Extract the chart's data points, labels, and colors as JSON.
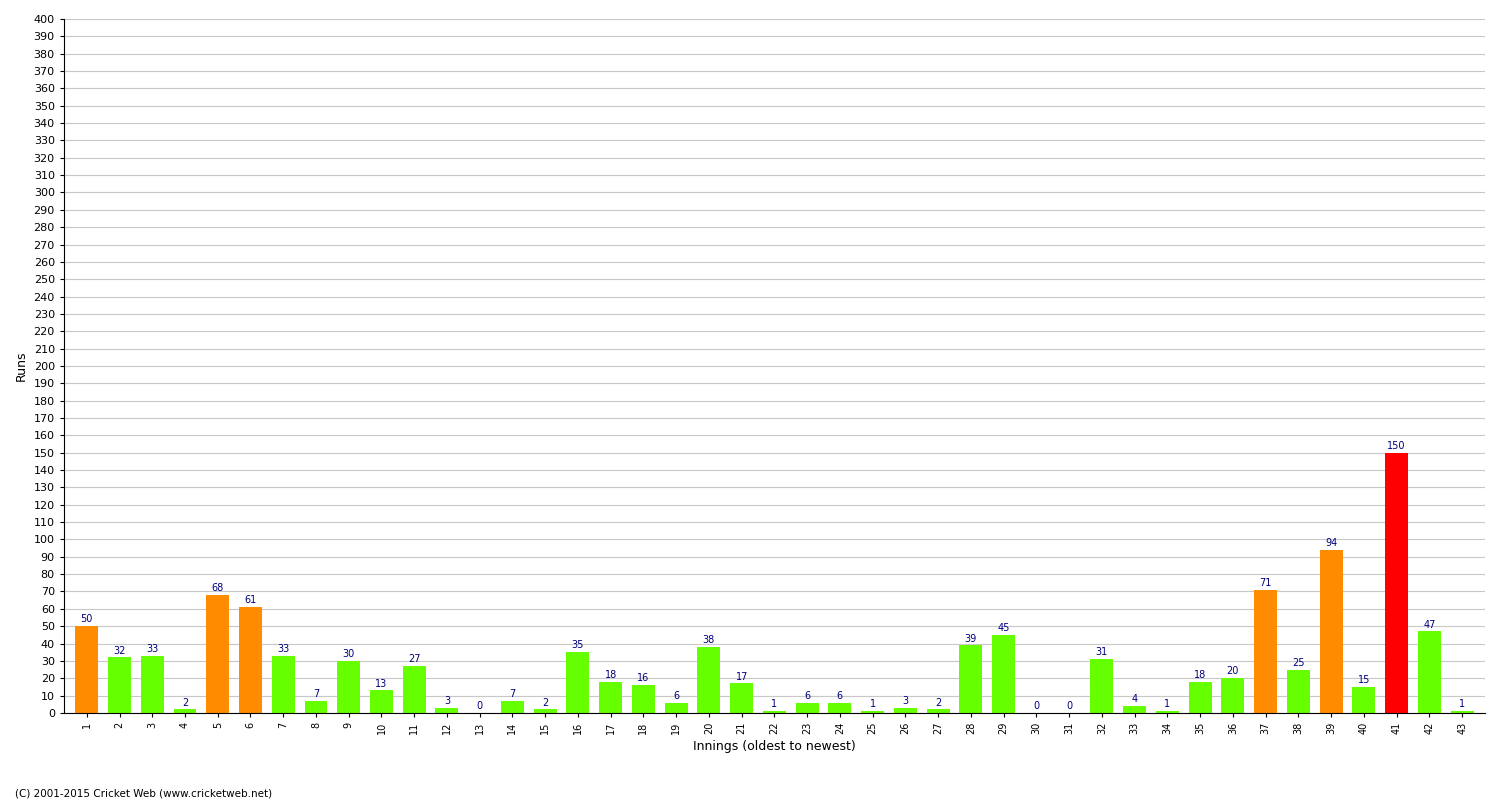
{
  "innings": [
    1,
    2,
    3,
    4,
    5,
    6,
    7,
    8,
    9,
    10,
    11,
    12,
    13,
    14,
    15,
    16,
    17,
    18,
    19,
    20,
    21,
    22,
    23,
    24,
    25,
    26,
    27,
    28,
    29,
    30,
    31,
    32,
    33,
    34,
    35,
    36,
    37,
    38,
    39,
    40,
    41,
    42,
    43
  ],
  "scores": [
    50,
    32,
    33,
    2,
    68,
    61,
    33,
    7,
    30,
    13,
    27,
    3,
    0,
    7,
    2,
    35,
    18,
    16,
    6,
    38,
    17,
    1,
    6,
    6,
    1,
    3,
    2,
    39,
    45,
    0,
    0,
    31,
    4,
    1,
    18,
    20,
    71,
    25,
    94,
    15,
    150,
    47,
    1
  ],
  "xlabel": "Innings (oldest to newest)",
  "ylabel": "Runs",
  "ylim": [
    0,
    400
  ],
  "ytick_step": 10,
  "green": "#66FF00",
  "orange": "#FF8C00",
  "red": "#FF0000",
  "fifty_threshold": 50,
  "hundred_threshold": 100,
  "bg_color": "#FFFFFF",
  "grid_color": "#C8C8C8",
  "label_color": "#000080",
  "label_fontsize": 7,
  "xtick_fontsize": 7,
  "ytick_fontsize": 8,
  "footer": "(C) 2001-2015 Cricket Web (www.cricketweb.net)"
}
